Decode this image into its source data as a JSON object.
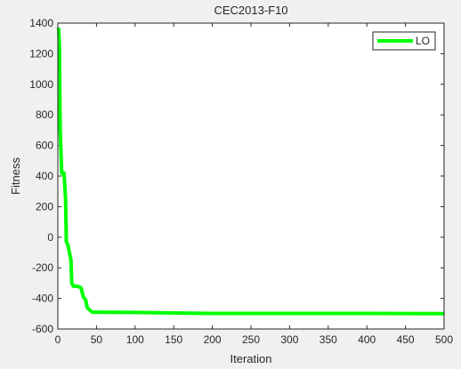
{
  "chart_data": {
    "type": "line",
    "title": "CEC2013-F10",
    "x_label": "Iteration",
    "y_label": "Fitness",
    "xlim": [
      0,
      500
    ],
    "xticks": [
      0,
      50,
      100,
      150,
      200,
      250,
      300,
      350,
      400,
      450,
      500
    ],
    "ylim": [
      -600,
      1400
    ],
    "yticks": [
      -600,
      -400,
      -200,
      0,
      200,
      400,
      600,
      800,
      1000,
      1200,
      1400
    ],
    "legend_position": "upper-right",
    "series": [
      {
        "name": "LO",
        "color": "#00ff00",
        "x": [
          1,
          2,
          3,
          5,
          7,
          8,
          10,
          11,
          13,
          15,
          17,
          18,
          20,
          25,
          30,
          33,
          36,
          38,
          42,
          45,
          50,
          100,
          150,
          200,
          300,
          400,
          500
        ],
        "values": [
          1370,
          1250,
          700,
          420,
          410,
          420,
          250,
          -30,
          -50,
          -100,
          -150,
          -300,
          -320,
          -320,
          -330,
          -390,
          -410,
          -460,
          -480,
          -490,
          -490,
          -492,
          -495,
          -498,
          -498,
          -498,
          -500
        ]
      }
    ]
  }
}
